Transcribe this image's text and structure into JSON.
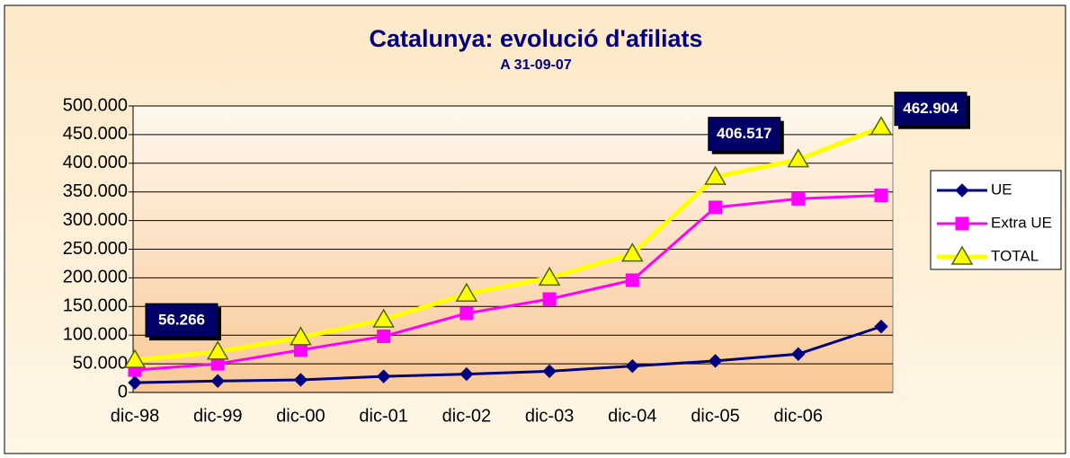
{
  "chart_data": {
    "type": "line",
    "title": "Catalunya: evolució d'afiliats",
    "subtitle": "A 31-09-07",
    "categories": [
      "dic-98",
      "dic-99",
      "dic-00",
      "dic-01",
      "dic-02",
      "dic-03",
      "dic-04",
      "dic-05",
      "dic-06",
      null
    ],
    "series": [
      {
        "name": "UE",
        "color": "#000080",
        "marker": "diamond",
        "values": [
          17000,
          20000,
          22000,
          28000,
          32000,
          37000,
          46000,
          55000,
          67000,
          115000
        ]
      },
      {
        "name": "Extra UE",
        "color": "#ff00ff",
        "marker": "square",
        "values": [
          39000,
          50000,
          74000,
          98000,
          138000,
          163000,
          196000,
          323000,
          338000,
          344000
        ]
      },
      {
        "name": "TOTAL",
        "color": "#ffff00",
        "marker": "triangle",
        "values": [
          56266,
          71000,
          96000,
          127000,
          172000,
          200000,
          242000,
          376000,
          406517,
          462904
        ],
        "value_labels": [
          "56.266",
          null,
          null,
          null,
          null,
          null,
          null,
          null,
          "406.517",
          "462.904"
        ]
      }
    ],
    "ylim": [
      0,
      500000
    ],
    "yticks": [
      0,
      {
        "value": 50000,
        "label": "50.000"
      },
      {
        "value": 100000,
        "label": "100.000"
      },
      {
        "value": 150000,
        "label": "150.000"
      },
      {
        "value": 200000,
        "label": "200.000"
      },
      {
        "value": 250000,
        "label": "250.000"
      },
      {
        "value": 300000,
        "label": "300.000"
      },
      {
        "value": 350000,
        "label": "350.000"
      },
      {
        "value": 400000,
        "label": "400.000"
      },
      {
        "value": 450000,
        "label": "450.000"
      },
      {
        "value": 500000,
        "label": "500.000"
      }
    ],
    "grid": true,
    "legend": "right"
  }
}
